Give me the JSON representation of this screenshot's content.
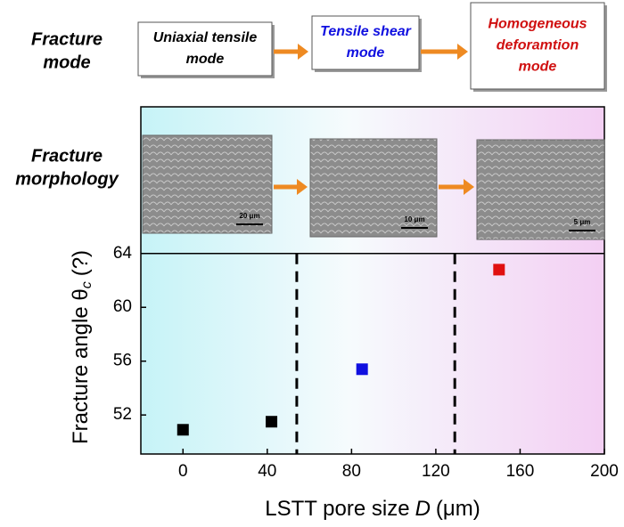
{
  "chart_data": {
    "type": "scatter",
    "side_labels": [
      [
        "Fracture",
        "mode"
      ],
      [
        "Fracture",
        "morphology"
      ]
    ],
    "mode_boxes": [
      {
        "lines": [
          "Uniaxial tensile",
          "mode"
        ],
        "color": "#000000"
      },
      {
        "lines": [
          "Tensile shear",
          "mode"
        ],
        "color": "#1010e0"
      },
      {
        "lines": [
          "Homogeneous",
          "deforamtion",
          "mode"
        ],
        "color": "#d01010"
      }
    ],
    "scale_bars": [
      "20 μm",
      "10 μm",
      "5 μm"
    ],
    "ylabel": [
      "Fracture angle θ",
      "c",
      "(?)"
    ],
    "xlabel": [
      "LSTT pore size",
      "D",
      "(μm)"
    ],
    "x": [
      0,
      42,
      85,
      150
    ],
    "values": [
      50.9,
      51.5,
      55.4,
      62.8
    ],
    "colors": [
      "#000000",
      "#000000",
      "#1010e0",
      "#e01010"
    ],
    "xlim": [
      -20,
      200
    ],
    "ylim": [
      49.1,
      74.9
    ],
    "xticks": [
      0,
      40,
      80,
      120,
      160,
      200
    ],
    "yticks": [
      52,
      56,
      60,
      64
    ],
    "vlines": [
      54,
      129
    ],
    "hline": 64
  }
}
